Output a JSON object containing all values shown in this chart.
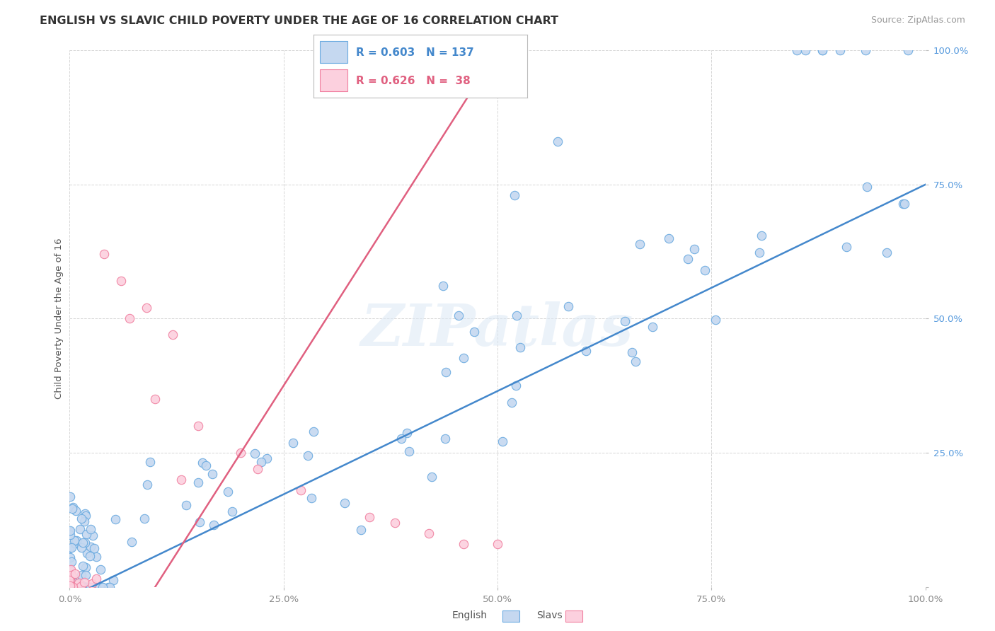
{
  "title": "ENGLISH VS SLAVIC CHILD POVERTY UNDER THE AGE OF 16 CORRELATION CHART",
  "source_text": "Source: ZipAtlas.com",
  "ylabel": "Child Poverty Under the Age of 16",
  "watermark": "ZIPatlas",
  "english_fill_color": "#c5d8f0",
  "english_edge_color": "#6aaae0",
  "slavic_fill_color": "#fcd0de",
  "slavic_edge_color": "#f080a0",
  "english_line_color": "#4488cc",
  "slavic_line_color": "#e06080",
  "legend_text_english": "R = 0.603   N = 137",
  "legend_text_slavic": "R = 0.626   N =  38",
  "ytick_color": "#5599dd",
  "background_color": "#ffffff",
  "grid_color": "#cccccc"
}
